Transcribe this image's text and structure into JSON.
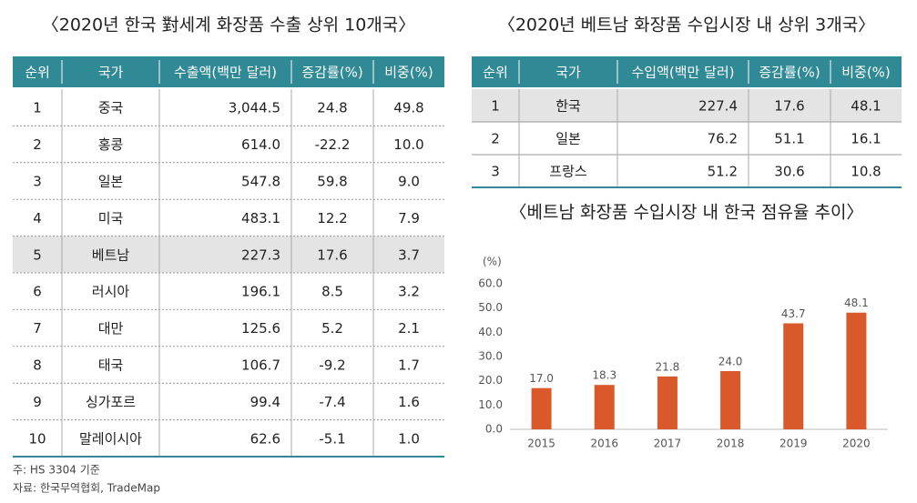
{
  "left_table": {
    "title": "〈2020년 한국 對세계 화장품 수출 상위 10개국〉",
    "header": [
      "순위",
      "국가",
      "수출액(백만 달러)",
      "증감률(%)",
      "비중(%)"
    ],
    "highlight_row": 4,
    "rows": [
      [
        "1",
        "중국",
        "3,044.5",
        "24.8",
        "49.8"
      ],
      [
        "2",
        "홍콩",
        "614.0",
        "-22.2",
        "10.0"
      ],
      [
        "3",
        "일본",
        "547.8",
        "59.8",
        "9.0"
      ],
      [
        "4",
        "미국",
        "483.1",
        "12.2",
        "7.9"
      ],
      [
        "5",
        "베트남",
        "227.3",
        "17.6",
        "3.7"
      ],
      [
        "6",
        "러시아",
        "196.1",
        "8.5",
        "3.2"
      ],
      [
        "7",
        "대만",
        "125.6",
        "5.2",
        "2.1"
      ],
      [
        "8",
        "태국",
        "106.7",
        "-9.2",
        "1.7"
      ],
      [
        "9",
        "싱가포르",
        "99.4",
        "-7.4",
        "1.6"
      ],
      [
        "10",
        "말레이시아",
        "62.6",
        "-5.1",
        "1.0"
      ]
    ]
  },
  "right_table": {
    "title": "〈2020년 베트남 화장품 수입시장 내 상위 3개국〉",
    "header": [
      "순위",
      "국가",
      "수입액(백만 달러)",
      "증감률(%)",
      "비중(%)"
    ],
    "highlight_row": 0,
    "rows": [
      [
        "1",
        "한국",
        "227.4",
        "17.6",
        "48.1"
      ],
      [
        "2",
        "일본",
        "76.2",
        "51.1",
        "16.1"
      ],
      [
        "3",
        "프랑스",
        "51.2",
        "30.6",
        "10.8"
      ]
    ]
  },
  "chart_data": {
    "type": "bar",
    "title": "〈베트남 화장품 수입시장 내 한국 점유율 추이〉",
    "y_unit": "(%)",
    "categories": [
      "2015",
      "2016",
      "2017",
      "2018",
      "2019",
      "2020"
    ],
    "values": [
      17.0,
      18.3,
      21.8,
      24.0,
      43.7,
      48.1
    ],
    "value_labels": [
      "17.0",
      "18.3",
      "21.8",
      "24.0",
      "43.7",
      "48.1"
    ],
    "color": "#d9592b",
    "ylim": [
      0,
      60
    ],
    "yticks": [
      {
        "value": 0,
        "label": "0.0"
      },
      {
        "value": 10,
        "label": "10.0"
      },
      {
        "value": 20,
        "label": "20.0"
      },
      {
        "value": 30,
        "label": "30.0"
      },
      {
        "value": 40,
        "label": "40.0"
      },
      {
        "value": 50,
        "label": "50.0"
      },
      {
        "value": 60,
        "label": "60.0"
      }
    ]
  },
  "footnotes": [
    "주: HS 3304 기준",
    "자료: 한국무역협회, TradeMap"
  ]
}
